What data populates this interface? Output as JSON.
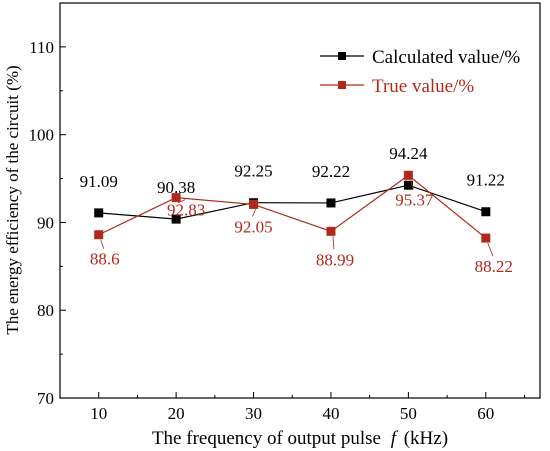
{
  "chart_data": {
    "type": "line",
    "title": "",
    "xlabel": "The frequency of output pulse",
    "xlabel_italic_part": "f",
    "xlabel_unit": "(kHz)",
    "ylabel": "The energy efficiency of the circuit  (%)",
    "x": [
      10,
      20,
      30,
      40,
      50,
      60
    ],
    "xticks": [
      10,
      20,
      30,
      40,
      50,
      60
    ],
    "yticks": [
      70,
      80,
      90,
      100,
      110
    ],
    "xlim": [
      5,
      67
    ],
    "ylim": [
      70,
      115
    ],
    "grid": false,
    "legend_position": "top-right",
    "series": [
      {
        "name": "Calculated value/%",
        "color": "#000000",
        "values": [
          91.09,
          90.38,
          92.25,
          92.22,
          94.24,
          91.22
        ],
        "labels": [
          "91.09",
          "90.38",
          "92.25",
          "92.22",
          "94.24",
          "91.22"
        ]
      },
      {
        "name": "True value/%",
        "color": "#b02a1c",
        "values": [
          88.6,
          92.83,
          92.05,
          88.99,
          95.37,
          88.22
        ],
        "labels": [
          "88.6",
          "92.83",
          "92.05",
          "88.99",
          "95.37",
          "88.22"
        ]
      }
    ]
  }
}
